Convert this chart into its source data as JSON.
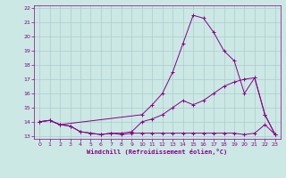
{
  "xlabel": "Windchill (Refroidissement éolien,°C)",
  "bg_color": "#cce8e4",
  "line_color": "#880088",
  "grid_color": "#aacccc",
  "xmin": 0,
  "xmax": 23,
  "ymin": 13,
  "ymax": 22,
  "line1_x": [
    0,
    1,
    2,
    3,
    4,
    5,
    6,
    7,
    8,
    9,
    10,
    11,
    12,
    13,
    14,
    15,
    16,
    17,
    18,
    19,
    20,
    21,
    22,
    23
  ],
  "line1_y": [
    14.0,
    14.1,
    13.8,
    13.7,
    13.3,
    13.2,
    13.1,
    13.2,
    13.1,
    13.2,
    13.2,
    13.2,
    13.2,
    13.2,
    13.2,
    13.2,
    13.2,
    13.2,
    13.2,
    13.2,
    13.1,
    13.2,
    13.8,
    13.1
  ],
  "line2_x": [
    0,
    1,
    2,
    3,
    4,
    5,
    6,
    7,
    8,
    9,
    10,
    11,
    12,
    13,
    14,
    15,
    16,
    17,
    18,
    19,
    20,
    21,
    22,
    23
  ],
  "line2_y": [
    14.0,
    14.1,
    13.8,
    13.7,
    13.3,
    13.2,
    13.1,
    13.2,
    13.2,
    13.3,
    14.0,
    14.2,
    14.5,
    15.0,
    15.5,
    15.2,
    15.5,
    16.0,
    16.5,
    16.8,
    17.0,
    17.1,
    14.5,
    13.1
  ],
  "line3_x": [
    0,
    1,
    2,
    10,
    11,
    12,
    13,
    14,
    15,
    16,
    17,
    18,
    19,
    20,
    21,
    22,
    23
  ],
  "line3_y": [
    14.0,
    14.1,
    13.8,
    14.5,
    15.2,
    16.0,
    17.5,
    19.5,
    21.5,
    21.3,
    20.3,
    19.0,
    18.3,
    16.0,
    17.1,
    14.5,
    13.1
  ],
  "yticks": [
    13,
    14,
    15,
    16,
    17,
    18,
    19,
    20,
    21,
    22
  ],
  "xticks": [
    0,
    1,
    2,
    3,
    4,
    5,
    6,
    7,
    8,
    9,
    10,
    11,
    12,
    13,
    14,
    15,
    16,
    17,
    18,
    19,
    20,
    21,
    22,
    23
  ]
}
